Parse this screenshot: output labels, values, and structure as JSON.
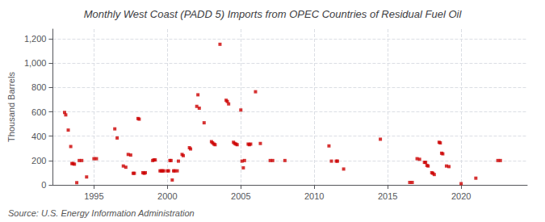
{
  "chart_data": {
    "type": "scatter",
    "title": "Monthly West Coast (PADD 5) Imports from OPEC Countries of Residual Fuel Oil",
    "ylabel": "Thousand Barrels",
    "annotation": "Source: U.S. Energy Information Administration",
    "color": "#cc0000",
    "marker": "square",
    "grid": true,
    "xlim": [
      1992.2,
      2024.5
    ],
    "xticks": [
      1995,
      2000,
      2005,
      2010,
      2015,
      2020
    ],
    "ylim": [
      0,
      1280
    ],
    "yticks": [
      0,
      200,
      400,
      600,
      800,
      {
        "value": 1000,
        "label": "1,000"
      },
      {
        "value": 1200,
        "label": "1,200"
      }
    ],
    "x": [
      1993.0,
      1993.08,
      1993.25,
      1993.42,
      1993.5,
      1993.58,
      1993.67,
      1993.83,
      1994.0,
      1994.17,
      1994.5,
      1995.0,
      1995.17,
      1996.42,
      1996.58,
      1997.0,
      1997.17,
      1997.33,
      1997.5,
      1997.67,
      1997.75,
      1998.0,
      1998.08,
      1998.33,
      1998.42,
      1998.5,
      1999.0,
      1999.08,
      1999.17,
      1999.5,
      1999.58,
      1999.67,
      1999.75,
      2000.0,
      2000.08,
      2000.17,
      2000.25,
      2000.33,
      2000.42,
      2000.5,
      2000.67,
      2000.75,
      2001.0,
      2001.08,
      2001.5,
      2001.58,
      2002.0,
      2002.08,
      2002.17,
      2002.5,
      2003.0,
      2003.08,
      2003.17,
      2003.25,
      2003.58,
      2004.0,
      2004.08,
      2004.17,
      2004.5,
      2004.58,
      2004.67,
      2004.75,
      2005.0,
      2005.08,
      2005.17,
      2005.25,
      2005.5,
      2005.58,
      2005.67,
      2006.0,
      2006.33,
      2007.0,
      2007.17,
      2008.0,
      2011.0,
      2011.17,
      2011.5,
      2011.58,
      2012.0,
      2014.5,
      2016.5,
      2016.67,
      2017.0,
      2017.17,
      2017.5,
      2017.58,
      2017.67,
      2017.75,
      2018.0,
      2018.08,
      2018.17,
      2018.5,
      2018.58,
      2018.67,
      2018.75,
      2019.0,
      2019.17,
      2020.0,
      2021.0,
      2022.5,
      2022.67
    ],
    "values": [
      595,
      575,
      450,
      315,
      175,
      175,
      170,
      18,
      200,
      200,
      65,
      215,
      215,
      460,
      385,
      155,
      145,
      250,
      245,
      95,
      95,
      545,
      540,
      100,
      95,
      100,
      200,
      205,
      205,
      115,
      115,
      115,
      115,
      115,
      115,
      200,
      200,
      40,
      115,
      115,
      115,
      195,
      250,
      240,
      305,
      295,
      645,
      740,
      630,
      510,
      355,
      345,
      335,
      330,
      1155,
      695,
      685,
      665,
      350,
      340,
      335,
      330,
      615,
      195,
      140,
      200,
      335,
      330,
      335,
      765,
      340,
      200,
      200,
      200,
      320,
      195,
      195,
      195,
      130,
      375,
      20,
      20,
      215,
      210,
      185,
      185,
      160,
      155,
      100,
      95,
      85,
      350,
      345,
      260,
      255,
      155,
      150,
      10,
      55,
      200,
      200
    ]
  }
}
